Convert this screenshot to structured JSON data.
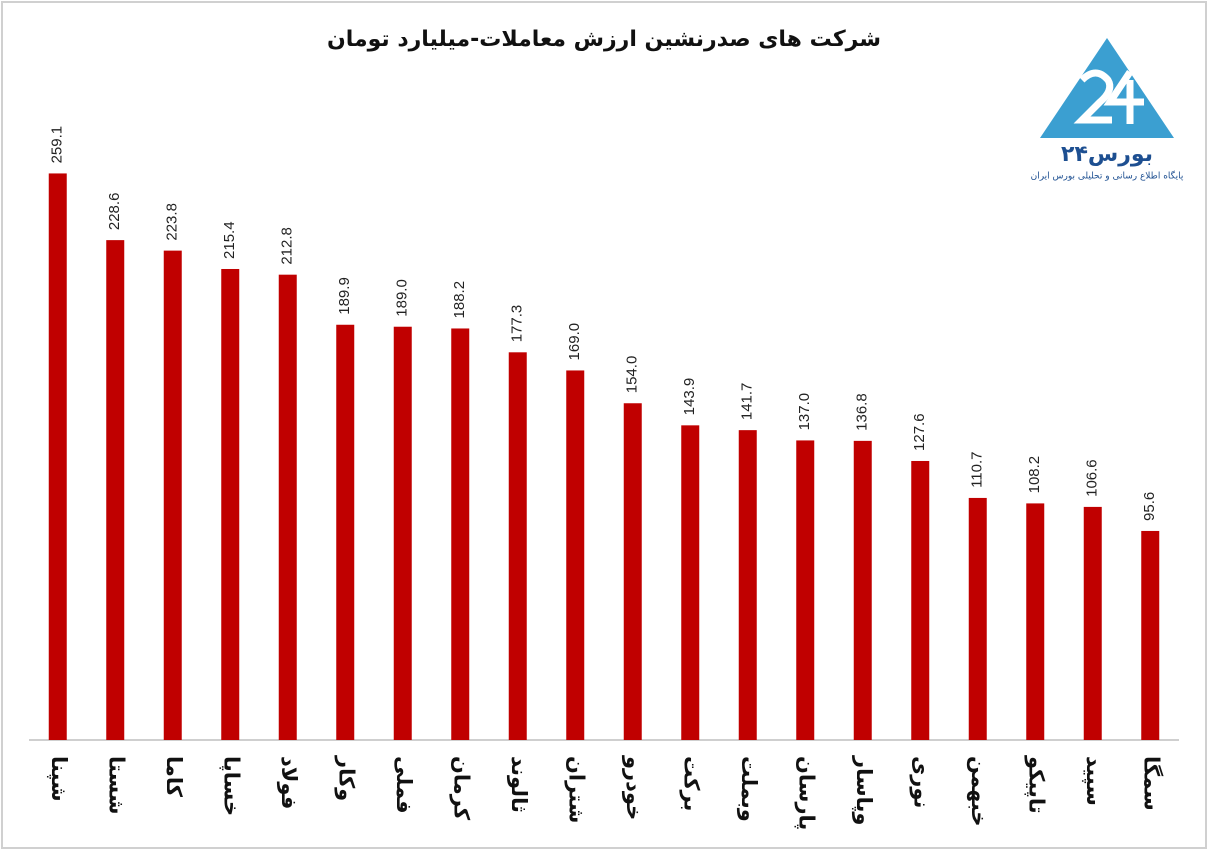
{
  "chart_data": {
    "type": "bar",
    "title": "شرکت های صدرنشین ارزش معاملات-میلیارد تومان",
    "categories": [
      "شپنا",
      "شستا",
      "کاما",
      "خساپا",
      "فولاد",
      "وکار",
      "فملی",
      "کرمان",
      "ثالوند",
      "شتران",
      "خودرو",
      "برکت",
      "وبملت",
      "پارسان",
      "وپاسار",
      "نوری",
      "خبهمن",
      "تاپیکو",
      "سپید",
      "سمگا"
    ],
    "values": [
      259.1,
      228.6,
      223.8,
      215.4,
      212.8,
      189.9,
      189.0,
      188.2,
      177.3,
      169.0,
      154.0,
      143.9,
      141.7,
      137.0,
      136.8,
      127.6,
      110.7,
      108.2,
      106.6,
      95.6
    ],
    "value_labels": [
      "259.1",
      "228.6",
      "223.8",
      "215.4",
      "212.8",
      "189.9",
      "189.0",
      "188.2",
      "177.3",
      "169.0",
      "154.0",
      "143.9",
      "141.7",
      "137.0",
      "136.8",
      "127.6",
      "110.7",
      "108.2",
      "106.6",
      "95.6"
    ],
    "color": "#c00000",
    "ylim": [
      0,
      300
    ]
  },
  "logo": {
    "name": "بورس۲۴",
    "tagline": "پایگاه اطلاع رسانی و تحلیلی بورس ایران"
  }
}
